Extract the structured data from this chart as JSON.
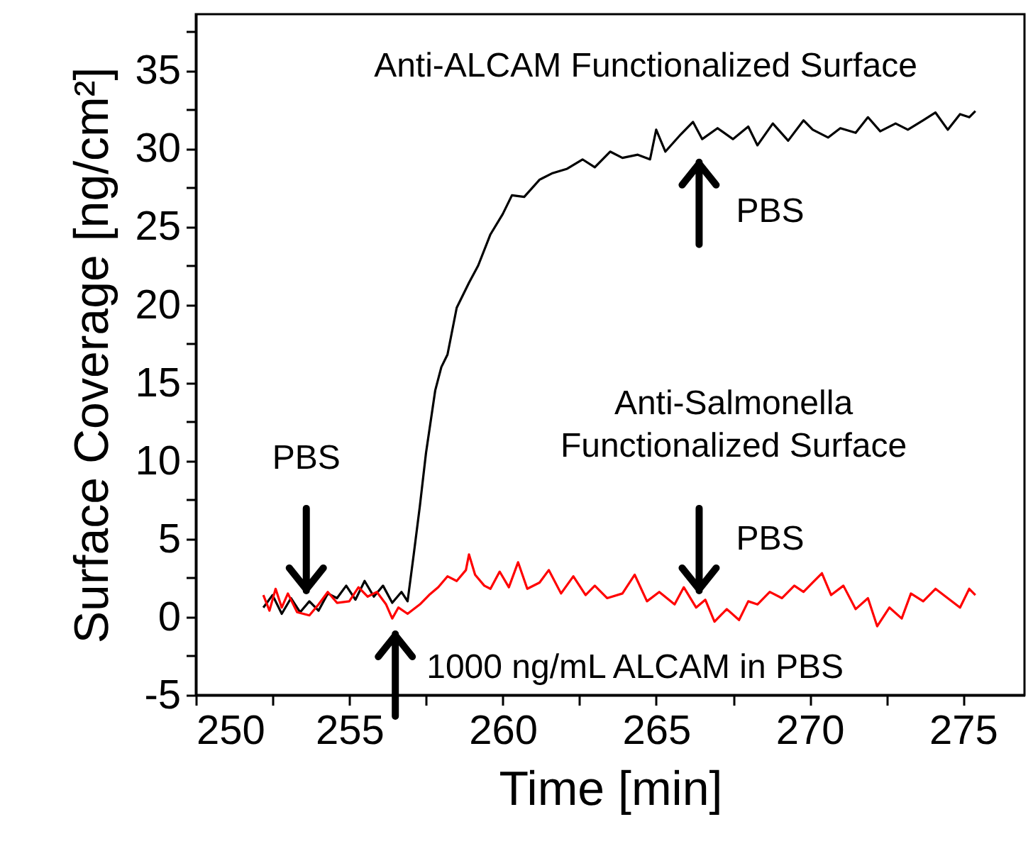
{
  "chart_data": {
    "type": "line",
    "xlabel": "Time [min]",
    "ylabel": "Surface Coverage [ng/cm²]",
    "xlim": [
      250,
      277
    ],
    "ylim": [
      -5,
      38.6
    ],
    "xticks": [
      250,
      {
        "value": 252.5,
        "label": null
      },
      255,
      {
        "value": 257.5,
        "label": null
      },
      260,
      {
        "value": 262.5,
        "label": null
      },
      265,
      {
        "value": 267.5,
        "label": null
      },
      270,
      {
        "value": 272.5,
        "label": null
      },
      275
    ],
    "yticks": [
      -5,
      {
        "value": -2.5,
        "label": null
      },
      0,
      {
        "value": 2.5,
        "label": null
      },
      5,
      {
        "value": 7.5,
        "label": null
      },
      10,
      {
        "value": 12.5,
        "label": null
      },
      15,
      {
        "value": 17.5,
        "label": null
      },
      20,
      {
        "value": 22.5,
        "label": null
      },
      25,
      {
        "value": 27.5,
        "label": null
      },
      30,
      {
        "value": 32.5,
        "label": null
      },
      35,
      {
        "value": 37.5,
        "label": null
      }
    ],
    "series": [
      {
        "color": "#000000",
        "x": [
          252.2,
          252.5,
          252.8,
          253.1,
          253.4,
          253.7,
          254.0,
          254.3,
          254.6,
          254.9,
          255.2,
          255.5,
          255.8,
          256.1,
          256.4,
          256.7,
          256.9,
          257.1,
          257.3,
          257.5,
          257.8,
          258.0,
          258.2,
          258.5,
          258.9,
          259.2,
          259.6,
          260.0,
          260.3,
          260.7,
          261.2,
          261.6,
          262.1,
          262.6,
          263.0,
          263.5,
          263.9,
          264.4,
          264.8,
          265.0,
          265.3,
          265.8,
          266.2,
          266.5,
          267.0,
          267.5,
          268.0,
          268.3,
          268.8,
          269.3,
          269.8,
          270.1,
          270.6,
          271.0,
          271.5,
          271.9,
          272.3,
          272.8,
          273.2,
          273.7,
          274.1,
          274.5,
          274.9,
          275.2,
          275.4
        ],
        "values": [
          0.6,
          1.4,
          0.2,
          1.2,
          0.3,
          1.0,
          0.4,
          1.5,
          1.2,
          2.0,
          1.1,
          2.3,
          1.3,
          2.0,
          0.9,
          1.6,
          1.0,
          4.0,
          7.1,
          10.5,
          14.5,
          16.0,
          16.8,
          19.8,
          21.4,
          22.5,
          24.5,
          25.8,
          27.0,
          26.9,
          28.0,
          28.4,
          28.7,
          29.3,
          28.8,
          29.8,
          29.4,
          29.6,
          29.3,
          31.2,
          29.8,
          30.9,
          31.7,
          30.6,
          31.3,
          30.6,
          31.4,
          30.2,
          31.6,
          30.5,
          31.8,
          31.2,
          30.7,
          31.3,
          31.0,
          32.0,
          31.1,
          31.6,
          31.2,
          31.8,
          32.3,
          31.2,
          32.2,
          32.0,
          32.4
        ]
      },
      {
        "color": "#ff0000",
        "x": [
          252.2,
          252.4,
          252.6,
          252.8,
          253.0,
          253.3,
          253.7,
          254.0,
          254.3,
          254.6,
          255.0,
          255.3,
          255.6,
          255.9,
          256.2,
          256.4,
          256.6,
          256.9,
          257.3,
          257.6,
          257.9,
          258.2,
          258.5,
          258.8,
          258.9,
          259.1,
          259.4,
          259.6,
          259.9,
          260.2,
          260.5,
          260.8,
          261.2,
          261.5,
          261.9,
          262.3,
          262.7,
          263.0,
          263.4,
          263.9,
          264.3,
          264.7,
          265.1,
          265.6,
          265.9,
          266.3,
          266.6,
          266.9,
          267.3,
          267.7,
          268.0,
          268.3,
          268.7,
          269.1,
          269.5,
          269.8,
          270.1,
          270.4,
          270.7,
          271.1,
          271.5,
          271.9,
          272.2,
          272.6,
          273.0,
          273.3,
          273.7,
          274.1,
          274.5,
          274.9,
          275.2,
          275.4
        ],
        "values": [
          1.4,
          0.4,
          1.8,
          0.6,
          1.5,
          0.3,
          0.1,
          0.8,
          1.6,
          0.9,
          1.0,
          1.9,
          1.3,
          1.6,
          0.8,
          -0.1,
          0.6,
          0.2,
          0.8,
          1.4,
          1.9,
          2.6,
          2.3,
          3.0,
          4.0,
          2.7,
          2.0,
          1.8,
          2.9,
          1.9,
          3.5,
          1.8,
          2.2,
          3.0,
          1.5,
          2.6,
          1.4,
          2.0,
          1.2,
          1.5,
          2.7,
          1.0,
          1.6,
          0.8,
          1.9,
          0.6,
          1.1,
          -0.3,
          0.5,
          -0.2,
          1.0,
          0.8,
          1.6,
          1.2,
          2.0,
          1.6,
          2.2,
          2.8,
          1.4,
          2.0,
          0.5,
          1.2,
          -0.6,
          0.6,
          -0.1,
          1.5,
          1.0,
          1.8,
          1.2,
          0.6,
          1.8,
          1.4
        ]
      }
    ],
    "annotations": [
      "Anti-ALCAM Functionalized Surface",
      "Anti-Salmonella\nFunctionalized Surface",
      {
        "text": "PBS",
        "x": 253.6,
        "y": 1.5
      },
      "1000 ng/mL ALCAM in PBS",
      {
        "text": "PBS",
        "x": 266.4,
        "y": 1.5
      },
      "PBS"
    ]
  }
}
